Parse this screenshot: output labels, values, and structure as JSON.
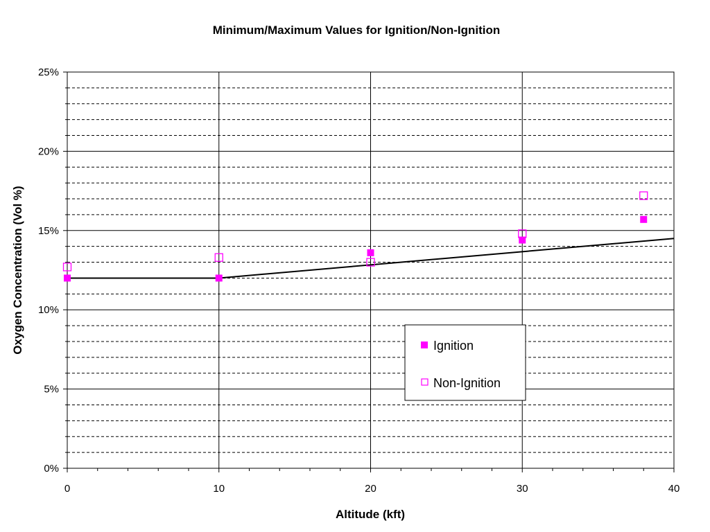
{
  "chart_data": {
    "type": "scatter",
    "title": "Minimum/Maximum Values for Ignition/Non-Ignition",
    "xlabel": "Altitude (kft)",
    "ylabel": "Oxygen Concentration (Vol %)",
    "xlim": [
      0,
      40
    ],
    "ylim": [
      0,
      25
    ],
    "x_ticks": [
      0,
      10,
      20,
      30,
      40
    ],
    "x_tick_labels": [
      "0",
      "10",
      "20",
      "30",
      "40"
    ],
    "y_ticks": [
      0,
      5,
      10,
      15,
      20,
      25
    ],
    "y_tick_labels": [
      "0%",
      "5%",
      "10%",
      "15%",
      "20%",
      "25%"
    ],
    "y_minor_step": 1,
    "x_minor_step": 2,
    "grid": true,
    "legend_position": "center-right",
    "series": [
      {
        "name": "Ignition",
        "marker": "filled-square",
        "color": "#FF00FF",
        "x": [
          0,
          10,
          20,
          30,
          38
        ],
        "y": [
          12.0,
          12.0,
          13.6,
          14.4,
          15.7
        ]
      },
      {
        "name": "Non-Ignition",
        "marker": "open-square",
        "color": "#FF00FF",
        "x": [
          0,
          10,
          20,
          30,
          38
        ],
        "y": [
          12.7,
          13.3,
          13.0,
          14.8,
          17.2
        ]
      }
    ],
    "reference_line": {
      "color": "#000000",
      "x": [
        0,
        10,
        40
      ],
      "y": [
        12.0,
        12.0,
        14.5
      ]
    }
  }
}
